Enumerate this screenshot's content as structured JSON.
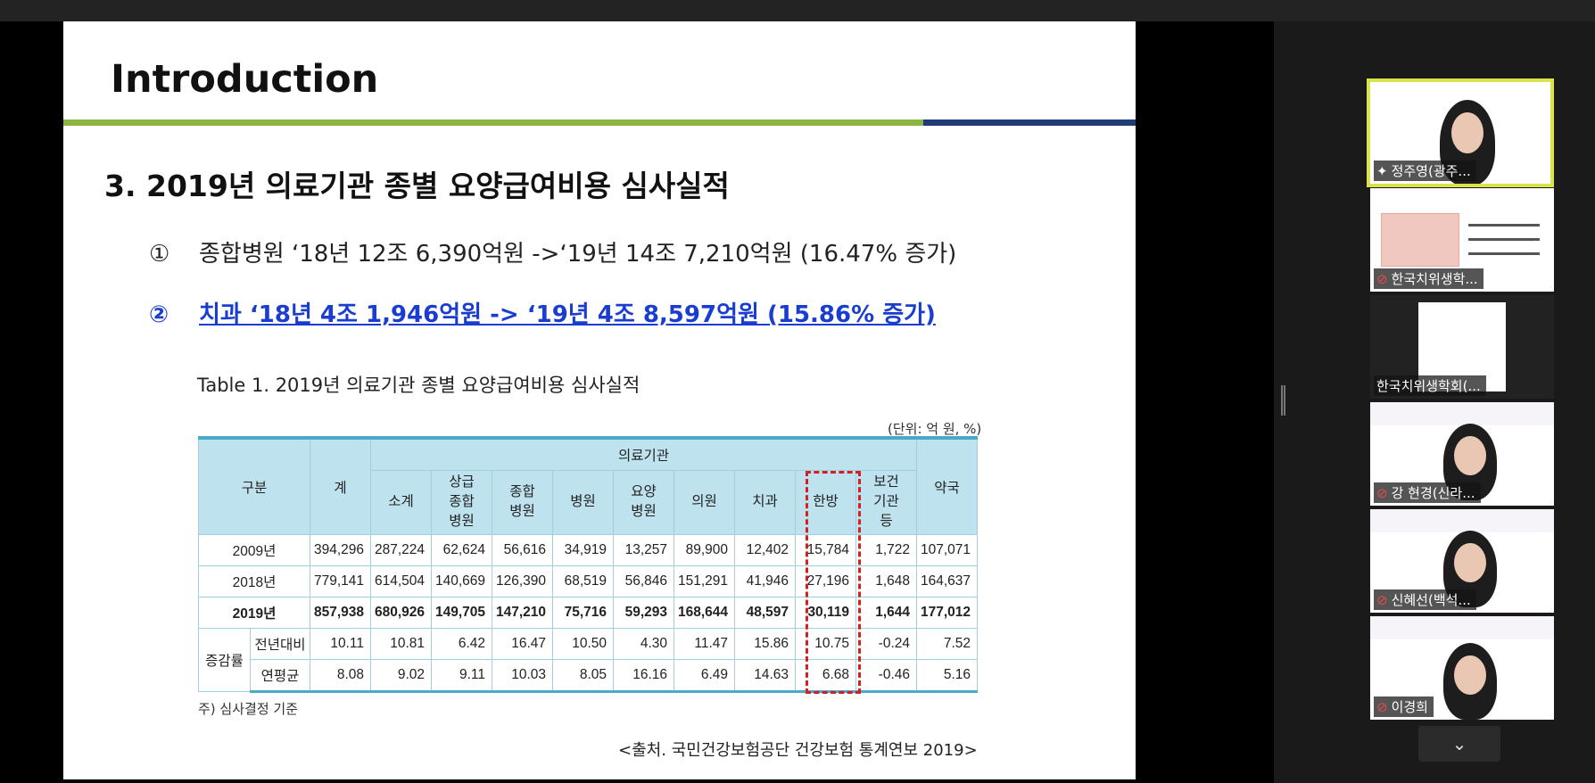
{
  "slide": {
    "title": "Introduction",
    "heading": "3. 2019년 의료기관 종별 요양급여비용 심사실적",
    "bullets": [
      {
        "num": "①",
        "text": "종합병원 ‘18년 12조 6,390억원 ->‘19년 14조 7,210억원 (16.47% 증가)"
      },
      {
        "num": "②",
        "text": "치과 ‘18년 4조 1,946억원 -> ‘19년 4조 8,597억원 (15.86% 증가) "
      }
    ],
    "table_caption": "Table 1. 2019년 의료기관 종별 요양급여비용 심사실적",
    "unit_note": "(단위: 억 원, %)",
    "footnote": "주) 심사결정 기준",
    "source": "<출처. 국민건강보험공단 건강보험 통계연보 2019>"
  },
  "table": {
    "h_gubun": "구분",
    "h_total": "계",
    "h_group": "의료기관",
    "h_pharmacy": "약국",
    "h_sub": [
      "소계",
      "상급\n종합\n병원",
      "종합\n병원",
      "병원",
      "요양\n병원",
      "의원",
      "치과",
      "한방",
      "보건\n기관\n등"
    ],
    "growth_label": "증감률",
    "rows": [
      {
        "label": "2009년",
        "values": [
          "394,296",
          "287,224",
          "62,624",
          "56,616",
          "34,919",
          "13,257",
          "89,900",
          "12,402",
          "15,784",
          "1,722",
          "107,071"
        ]
      },
      {
        "label": "2018년",
        "values": [
          "779,141",
          "614,504",
          "140,669",
          "126,390",
          "68,519",
          "56,846",
          "151,291",
          "41,946",
          "27,196",
          "1,648",
          "164,637"
        ]
      },
      {
        "label": "2019년",
        "values": [
          "857,938",
          "680,926",
          "149,705",
          "147,210",
          "75,716",
          "59,293",
          "168,644",
          "48,597",
          "30,119",
          "1,644",
          "177,012"
        ]
      },
      {
        "label": "전년대비",
        "values": [
          "10.11",
          "10.81",
          "6.42",
          "16.47",
          "10.50",
          "4.30",
          "11.47",
          "15.86",
          "10.75",
          "-0.24",
          "7.52"
        ]
      },
      {
        "label": "연평균",
        "values": [
          "8.08",
          "9.02",
          "9.11",
          "10.03",
          "8.05",
          "16.16",
          "6.49",
          "14.63",
          "6.68",
          "-0.46",
          "5.16"
        ]
      }
    ]
  },
  "participants": [
    {
      "name": "정주영(광주...",
      "active": true
    },
    {
      "name": "한국치위생학...",
      "active": false,
      "muted": true
    },
    {
      "name": "한국치위생학회(...",
      "active": false
    },
    {
      "name": "강 현경(신라...",
      "active": false,
      "muted": true
    },
    {
      "name": "신혜선(백석...",
      "active": false,
      "muted": true
    },
    {
      "name": "이경희",
      "active": false,
      "muted": true
    }
  ],
  "icons": {
    "muted": "mic-muted-icon",
    "speaking": "pin-icon",
    "scroll": "chevron-down-icon"
  }
}
